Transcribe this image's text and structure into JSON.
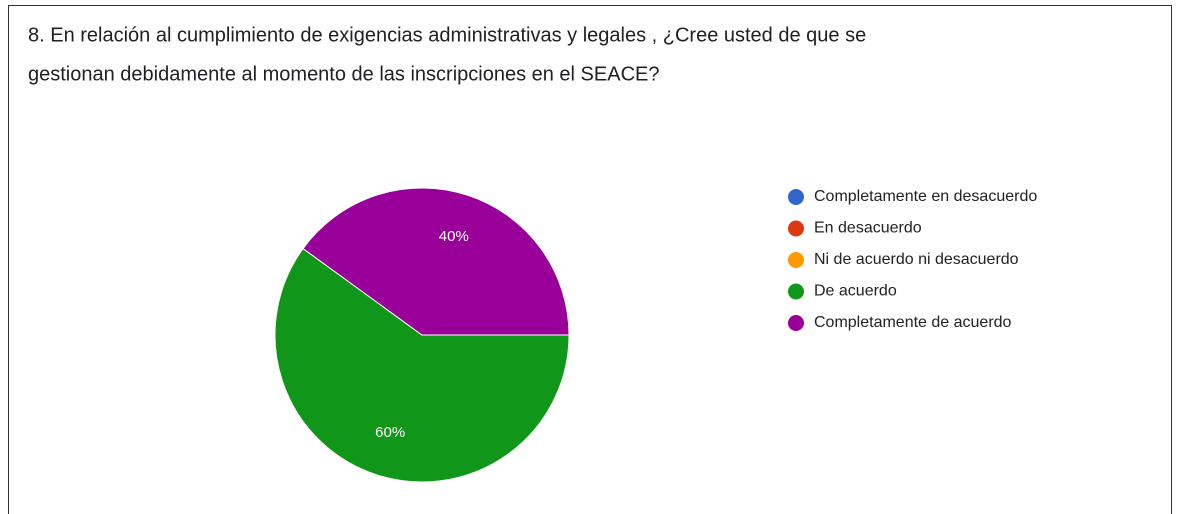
{
  "chart_data": {
    "type": "pie",
    "title": [
      "8. En relación al cumplimiento de exigencias administrativas y legales , ¿Cree usted de que se",
      "gestionan debidamente al momento de las inscripciones en el SEACE?"
    ],
    "categories": [
      "Completamente en desacuerdo",
      "En desacuerdo",
      "Ni de acuerdo ni desacuerdo",
      "De acuerdo",
      "Completamente de acuerdo"
    ],
    "values": [
      0,
      0,
      0,
      60,
      40
    ],
    "value_labels": [
      null,
      null,
      null,
      "60%",
      "40%"
    ],
    "colors": [
      "#3366cc",
      "#dc3912",
      "#ff9900",
      "#109618",
      "#990099"
    ],
    "legend": "right"
  }
}
